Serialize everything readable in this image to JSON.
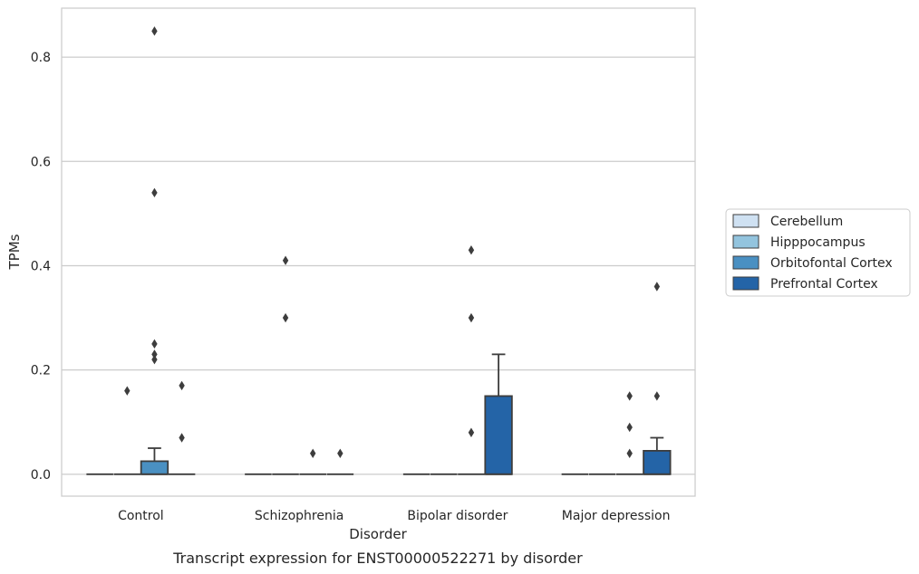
{
  "chart_data": {
    "type": "box",
    "caption": "Transcript expression for ENST00000522271 by disorder",
    "xlabel": "Disorder",
    "ylabel": "TPMs",
    "ylim": [
      -0.042,
      0.894
    ],
    "yticks": [
      0.0,
      0.2,
      0.4,
      0.6,
      0.8
    ],
    "ytick_labels": [
      "0.0",
      "0.2",
      "0.4",
      "0.6",
      "0.8"
    ],
    "grid": "horizontal",
    "legend_position": "right",
    "categories": [
      "Control",
      "Schizophrenia",
      "Bipolar disorder",
      "Major depression"
    ],
    "series": [
      {
        "name": "Cerebellum",
        "color": "#cfe1f2",
        "boxes": [
          {
            "q1": 0,
            "median": 0,
            "q3": 0,
            "whisker_low": 0,
            "whisker_high": 0,
            "outliers": []
          },
          {
            "q1": 0,
            "median": 0,
            "q3": 0,
            "whisker_low": 0,
            "whisker_high": 0,
            "outliers": []
          },
          {
            "q1": 0,
            "median": 0,
            "q3": 0,
            "whisker_low": 0,
            "whisker_high": 0,
            "outliers": []
          },
          {
            "q1": 0,
            "median": 0,
            "q3": 0,
            "whisker_low": 0,
            "whisker_high": 0,
            "outliers": []
          }
        ]
      },
      {
        "name": "Hipppocampus",
        "color": "#93c4de",
        "boxes": [
          {
            "q1": 0,
            "median": 0,
            "q3": 0,
            "whisker_low": 0,
            "whisker_high": 0,
            "outliers": [
              0.16
            ]
          },
          {
            "q1": 0,
            "median": 0,
            "q3": 0,
            "whisker_low": 0,
            "whisker_high": 0,
            "outliers": [
              0.3,
              0.41
            ]
          },
          {
            "q1": 0,
            "median": 0,
            "q3": 0,
            "whisker_low": 0,
            "whisker_high": 0,
            "outliers": []
          },
          {
            "q1": 0,
            "median": 0,
            "q3": 0,
            "whisker_low": 0,
            "whisker_high": 0,
            "outliers": []
          }
        ]
      },
      {
        "name": "Orbitofontal Cortex",
        "color": "#4a90c2",
        "boxes": [
          {
            "q1": 0,
            "median": 0,
            "q3": 0.025,
            "whisker_low": 0,
            "whisker_high": 0.05,
            "outliers": [
              0.23,
              0.25,
              0.22,
              0.54,
              0.85
            ]
          },
          {
            "q1": 0,
            "median": 0,
            "q3": 0,
            "whisker_low": 0,
            "whisker_high": 0,
            "outliers": [
              0.04
            ]
          },
          {
            "q1": 0,
            "median": 0,
            "q3": 0,
            "whisker_low": 0,
            "whisker_high": 0,
            "outliers": [
              0.08,
              0.3,
              0.43
            ]
          },
          {
            "q1": 0,
            "median": 0,
            "q3": 0,
            "whisker_low": 0,
            "whisker_high": 0,
            "outliers": [
              0.04,
              0.09,
              0.15
            ]
          }
        ]
      },
      {
        "name": "Prefrontal Cortex",
        "color": "#2464a7",
        "boxes": [
          {
            "q1": 0,
            "median": 0,
            "q3": 0,
            "whisker_low": 0,
            "whisker_high": 0,
            "outliers": [
              0.07,
              0.17
            ]
          },
          {
            "q1": 0,
            "median": 0,
            "q3": 0,
            "whisker_low": 0,
            "whisker_high": 0,
            "outliers": [
              0.04
            ]
          },
          {
            "q1": 0,
            "median": 0,
            "q3": 0.15,
            "whisker_low": 0,
            "whisker_high": 0.23,
            "outliers": []
          },
          {
            "q1": 0,
            "median": 0,
            "q3": 0.045,
            "whisker_low": 0,
            "whisker_high": 0.07,
            "outliers": [
              0.15,
              0.36
            ]
          }
        ]
      }
    ]
  }
}
